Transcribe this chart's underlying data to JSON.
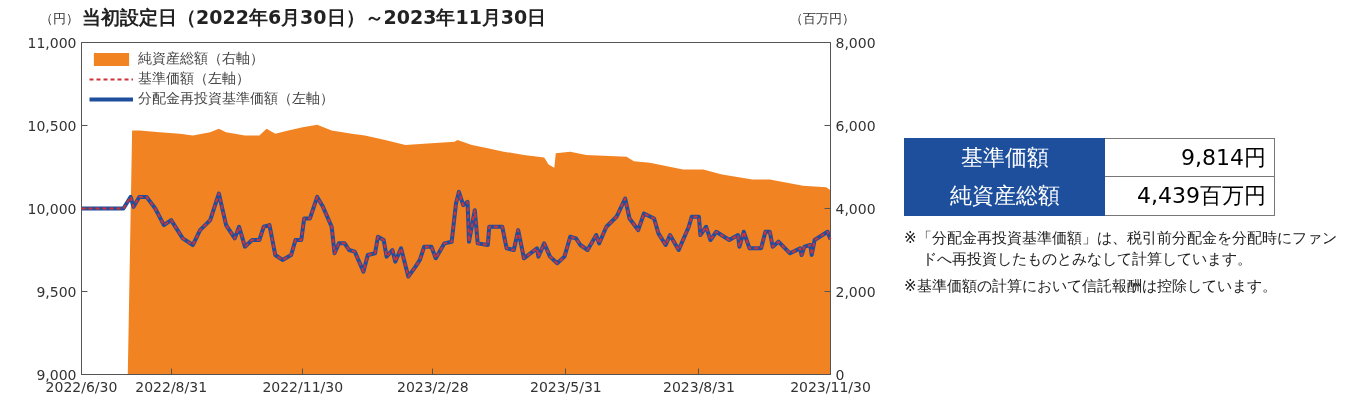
{
  "chart_data": {
    "type": "line",
    "title": "当初設定日（2022年6月30日）～2023年11月30日",
    "ylabel": "（円）",
    "y2label": "（百万円）",
    "xlim": [
      "2022-06-30",
      "2023-11-30"
    ],
    "xticks": [
      {
        "value": "2022-06-30",
        "label": "2022/6/30"
      },
      {
        "value": "2022-08-31",
        "label": "2022/8/31"
      },
      {
        "value": "2022-11-30",
        "label": "2022/11/30"
      },
      {
        "value": "2023-02-28",
        "label": "2023/2/28"
      },
      {
        "value": "2023-05-31",
        "label": "2023/5/31"
      },
      {
        "value": "2023-08-31",
        "label": "2023/8/31"
      },
      {
        "value": "2023-11-30",
        "label": "2023/11/30"
      }
    ],
    "ylim": [
      9000,
      11000
    ],
    "yticks": [
      {
        "value": 9000,
        "label": "9,000"
      },
      {
        "value": 9500,
        "label": "9,500"
      },
      {
        "value": 10000,
        "label": "10,000"
      },
      {
        "value": 10500,
        "label": "10,500"
      },
      {
        "value": 11000,
        "label": "11,000"
      }
    ],
    "y2lim": [
      0,
      8000
    ],
    "y2ticks": [
      0,
      {
        "value": 2000,
        "label": "2,000"
      },
      {
        "value": 4000,
        "label": "4,000"
      },
      {
        "value": 6000,
        "label": "6,000"
      },
      {
        "value": 8000,
        "label": "8,000"
      }
    ],
    "grid": false,
    "legend": "top left",
    "annotations": [
      "基準価額",
      "9,814円",
      "純資産総額",
      "4,439百万円",
      "※「分配金再投資基準価額」は、税引前分配金を分配時にファンドへ再投資したものとみなして計算しています。",
      "※基準価額の計算において信託報酬は控除しています。"
    ],
    "series": [
      {
        "name": "純資産総額（右軸）",
        "type": "area",
        "axis": "y2",
        "color": "#f28322",
        "x": [
          "2022-08-01",
          "2022-08-04",
          "2022-08-09",
          "2022-08-23",
          "2022-09-06",
          "2022-09-15",
          "2022-09-27",
          "2022-10-03",
          "2022-10-08",
          "2022-10-21",
          "2022-10-31",
          "2022-11-05",
          "2022-11-11",
          "2022-11-20",
          "2022-11-30",
          "2022-12-10",
          "2022-12-20",
          "2023-01-03",
          "2023-01-12",
          "2023-01-26",
          "2023-02-09",
          "2023-02-27",
          "2023-03-15",
          "2023-03-17",
          "2023-03-27",
          "2023-04-07",
          "2023-04-18",
          "2023-05-02",
          "2023-05-16",
          "2023-05-19",
          "2023-05-23",
          "2023-05-24",
          "2023-06-03",
          "2023-06-14",
          "2023-07-12",
          "2023-07-17",
          "2023-07-28",
          "2023-08-20",
          "2023-09-03",
          "2023-09-16",
          "2023-10-07",
          "2023-10-19",
          "2023-11-11",
          "2023-11-27",
          "2023-11-30"
        ],
        "values": [
          0,
          5880,
          5880,
          5840,
          5800,
          5760,
          5840,
          5920,
          5840,
          5760,
          5760,
          5920,
          5800,
          5880,
          5960,
          6020,
          5880,
          5800,
          5760,
          5650,
          5530,
          5570,
          5610,
          5650,
          5530,
          5450,
          5370,
          5290,
          5230,
          5060,
          4980,
          5330,
          5370,
          5290,
          5250,
          5140,
          5100,
          4940,
          4940,
          4820,
          4700,
          4700,
          4550,
          4510,
          4440
        ]
      },
      {
        "name": "基準価額（左軸）",
        "line_style": "dashed",
        "color": "#d0323a",
        "x": [
          "2022-06-30",
          "2022-07-29",
          "2022-08-03",
          "2022-08-05",
          "2022-08-09",
          "2022-08-14",
          "2022-08-20",
          "2022-08-26",
          "2022-08-31",
          "2022-09-08",
          "2022-09-15",
          "2022-09-20",
          "2022-09-27",
          "2022-10-03",
          "2022-10-08",
          "2022-10-14",
          "2022-10-17",
          "2022-10-21",
          "2022-10-26",
          "2022-10-31",
          "2022-11-03",
          "2022-11-07",
          "2022-11-11",
          "2022-11-16",
          "2022-11-22",
          "2022-11-25",
          "2022-11-29",
          "2022-12-01",
          "2022-12-05",
          "2022-12-10",
          "2022-12-14",
          "2022-12-20",
          "2022-12-22",
          "2022-12-25",
          "2022-12-29",
          "2023-01-01",
          "2023-01-05",
          "2023-01-11",
          "2023-01-14",
          "2023-01-19",
          "2023-01-21",
          "2023-01-25",
          "2023-01-27",
          "2023-01-31",
          "2023-02-02",
          "2023-02-06",
          "2023-02-11",
          "2023-02-16",
          "2023-02-19",
          "2023-02-22",
          "2023-02-27",
          "2023-03-02",
          "2023-03-08",
          "2023-03-13",
          "2023-03-16",
          "2023-03-18",
          "2023-03-21",
          "2023-03-24",
          "2023-03-25",
          "2023-03-29",
          "2023-03-31",
          "2023-04-07",
          "2023-04-08",
          "2023-04-17",
          "2023-04-20",
          "2023-04-25",
          "2023-04-28",
          "2023-05-02",
          "2023-05-11",
          "2023-05-12",
          "2023-05-16",
          "2023-05-20",
          "2023-05-25",
          "2023-05-30",
          "2023-06-03",
          "2023-06-07",
          "2023-06-10",
          "2023-06-15",
          "2023-06-21",
          "2023-06-23",
          "2023-06-28",
          "2023-07-05",
          "2023-07-11",
          "2023-07-14",
          "2023-07-20",
          "2023-07-24",
          "2023-07-31",
          "2023-08-03",
          "2023-08-08",
          "2023-08-11",
          "2023-08-17",
          "2023-08-24",
          "2023-08-26",
          "2023-08-31",
          "2023-09-01",
          "2023-09-05",
          "2023-09-08",
          "2023-09-12",
          "2023-09-21",
          "2023-09-27",
          "2023-09-28",
          "2023-10-01",
          "2023-10-05",
          "2023-10-13",
          "2023-10-16",
          "2023-10-19",
          "2023-10-21",
          "2023-10-25",
          "2023-11-02",
          "2023-11-09",
          "2023-11-10",
          "2023-11-12",
          "2023-11-16",
          "2023-11-17",
          "2023-11-19",
          "2023-11-28",
          "2023-11-30"
        ],
        "values": [
          10000,
          10000,
          10070,
          10010,
          10070,
          10070,
          10000,
          9900,
          9930,
          9820,
          9780,
          9870,
          9930,
          10090,
          9900,
          9820,
          9890,
          9770,
          9810,
          9810,
          9890,
          9900,
          9720,
          9690,
          9720,
          9810,
          9810,
          9940,
          9940,
          10070,
          10010,
          9890,
          9730,
          9790,
          9790,
          9750,
          9740,
          9620,
          9720,
          9730,
          9830,
          9810,
          9710,
          9750,
          9680,
          9760,
          9590,
          9650,
          9690,
          9770,
          9770,
          9700,
          9790,
          9800,
          10030,
          10100,
          10020,
          10040,
          9800,
          9990,
          9790,
          9780,
          9890,
          9890,
          9760,
          9750,
          9870,
          9700,
          9760,
          9710,
          9790,
          9710,
          9670,
          9710,
          9830,
          9820,
          9780,
          9750,
          9840,
          9790,
          9890,
          9950,
          10060,
          9940,
          9870,
          9970,
          9940,
          9850,
          9780,
          9840,
          9750,
          9890,
          9950,
          9950,
          9840,
          9890,
          9810,
          9860,
          9810,
          9840,
          9770,
          9860,
          9760,
          9760,
          9860,
          9860,
          9770,
          9800,
          9730,
          9760,
          9720,
          9770,
          9780,
          9720,
          9810,
          9860,
          9814
        ]
      },
      {
        "name": "分配金再投資基準価額（左軸）",
        "line_style": "solid",
        "color": "#1f4e9c",
        "x": [
          "2022-06-30",
          "2022-07-29",
          "2022-08-03",
          "2022-08-05",
          "2022-08-09",
          "2022-08-14",
          "2022-08-20",
          "2022-08-26",
          "2022-08-31",
          "2022-09-08",
          "2022-09-15",
          "2022-09-20",
          "2022-09-27",
          "2022-10-03",
          "2022-10-08",
          "2022-10-14",
          "2022-10-17",
          "2022-10-21",
          "2022-10-26",
          "2022-10-31",
          "2022-11-03",
          "2022-11-07",
          "2022-11-11",
          "2022-11-16",
          "2022-11-22",
          "2022-11-25",
          "2022-11-29",
          "2022-12-01",
          "2022-12-05",
          "2022-12-10",
          "2022-12-14",
          "2022-12-20",
          "2022-12-22",
          "2022-12-25",
          "2022-12-29",
          "2023-01-01",
          "2023-01-05",
          "2023-01-11",
          "2023-01-14",
          "2023-01-19",
          "2023-01-21",
          "2023-01-25",
          "2023-01-27",
          "2023-01-31",
          "2023-02-02",
          "2023-02-06",
          "2023-02-11",
          "2023-02-16",
          "2023-02-19",
          "2023-02-22",
          "2023-02-27",
          "2023-03-02",
          "2023-03-08",
          "2023-03-13",
          "2023-03-16",
          "2023-03-18",
          "2023-03-21",
          "2023-03-24",
          "2023-03-25",
          "2023-03-29",
          "2023-03-31",
          "2023-04-07",
          "2023-04-08",
          "2023-04-17",
          "2023-04-20",
          "2023-04-25",
          "2023-04-28",
          "2023-05-02",
          "2023-05-11",
          "2023-05-12",
          "2023-05-16",
          "2023-05-20",
          "2023-05-25",
          "2023-05-30",
          "2023-06-03",
          "2023-06-07",
          "2023-06-10",
          "2023-06-15",
          "2023-06-21",
          "2023-06-23",
          "2023-06-28",
          "2023-07-05",
          "2023-07-11",
          "2023-07-14",
          "2023-07-20",
          "2023-07-24",
          "2023-07-31",
          "2023-08-03",
          "2023-08-08",
          "2023-08-11",
          "2023-08-17",
          "2023-08-24",
          "2023-08-26",
          "2023-08-31",
          "2023-09-01",
          "2023-09-05",
          "2023-09-08",
          "2023-09-12",
          "2023-09-21",
          "2023-09-27",
          "2023-09-28",
          "2023-10-01",
          "2023-10-05",
          "2023-10-13",
          "2023-10-16",
          "2023-10-19",
          "2023-10-21",
          "2023-10-25",
          "2023-11-02",
          "2023-11-09",
          "2023-11-10",
          "2023-11-12",
          "2023-11-16",
          "2023-11-17",
          "2023-11-19",
          "2023-11-28",
          "2023-11-30"
        ],
        "values": [
          10000,
          10000,
          10070,
          10010,
          10070,
          10070,
          10000,
          9900,
          9930,
          9820,
          9780,
          9870,
          9930,
          10090,
          9900,
          9820,
          9890,
          9770,
          9810,
          9810,
          9890,
          9900,
          9720,
          9690,
          9720,
          9810,
          9810,
          9940,
          9940,
          10070,
          10010,
          9890,
          9730,
          9790,
          9790,
          9750,
          9740,
          9620,
          9720,
          9730,
          9830,
          9810,
          9710,
          9750,
          9680,
          9760,
          9590,
          9650,
          9690,
          9770,
          9770,
          9700,
          9790,
          9800,
          10030,
          10100,
          10020,
          10040,
          9800,
          9990,
          9790,
          9780,
          9890,
          9890,
          9760,
          9750,
          9870,
          9700,
          9760,
          9710,
          9790,
          9710,
          9670,
          9710,
          9830,
          9820,
          9780,
          9750,
          9840,
          9790,
          9890,
          9950,
          10060,
          9940,
          9870,
          9970,
          9940,
          9850,
          9780,
          9840,
          9750,
          9890,
          9950,
          9950,
          9840,
          9890,
          9810,
          9860,
          9810,
          9840,
          9770,
          9860,
          9760,
          9760,
          9860,
          9860,
          9770,
          9800,
          9730,
          9760,
          9720,
          9770,
          9780,
          9720,
          9810,
          9860,
          9814
        ]
      }
    ]
  }
}
